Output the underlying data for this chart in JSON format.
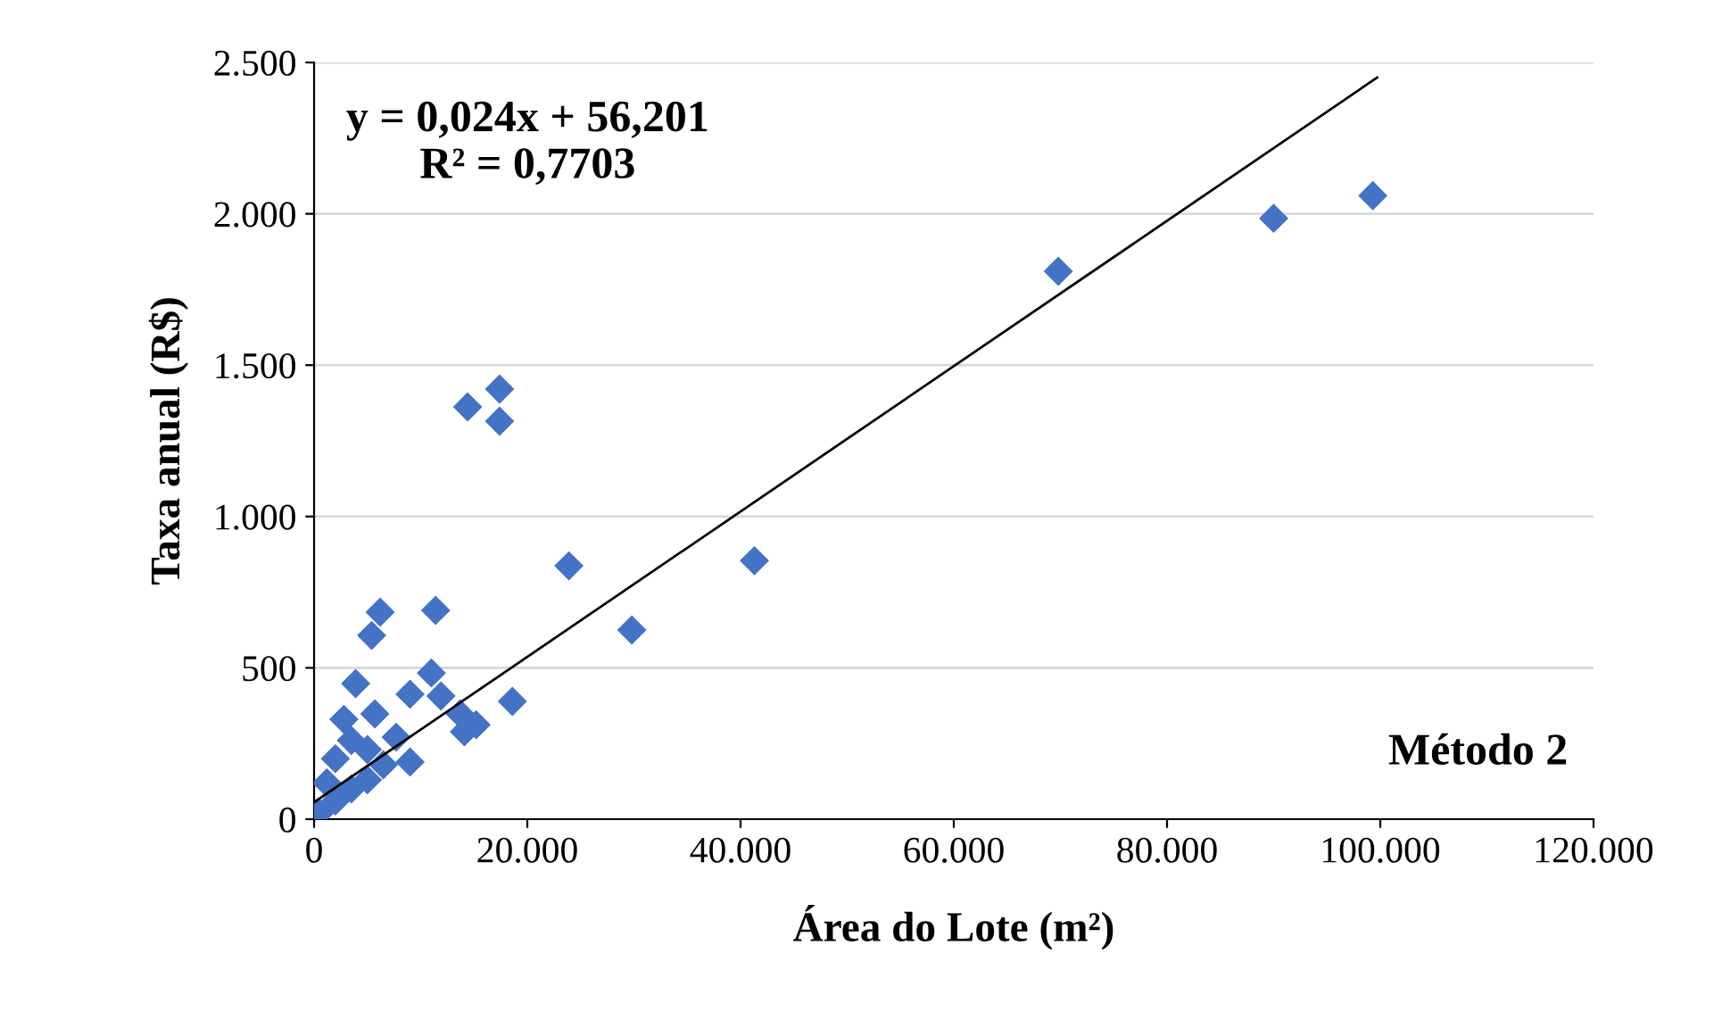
{
  "chart_data": {
    "type": "scatter",
    "xlabel": "Área do Lote (m²)",
    "ylabel": "Taxa anual (R$)",
    "annotations": [
      "y = 0,024x + 56,201\nR² = 0,7703",
      "Método 2"
    ],
    "xlim": [
      0,
      120000
    ],
    "ylim": [
      0,
      2500
    ],
    "xticks": [
      0,
      {
        "value": 20000,
        "label": "20.000"
      },
      {
        "value": 40000,
        "label": "40.000"
      },
      {
        "value": 60000,
        "label": "60.000"
      },
      {
        "value": 80000,
        "label": "80.000"
      },
      {
        "value": 100000,
        "label": "100.000"
      },
      {
        "value": 120000,
        "label": "120.000"
      }
    ],
    "yticks": [
      0,
      500,
      {
        "value": 1000,
        "label": "1.000"
      },
      {
        "value": 1500,
        "label": "1.500"
      },
      {
        "value": 2000,
        "label": "2.000"
      },
      {
        "value": 2500,
        "label": "2.500"
      }
    ],
    "grid": "y",
    "legend": false,
    "series": [
      {
        "color": "#4472c4",
        "marker": "diamond",
        "x": [
          99300,
          90000,
          69800,
          41300,
          29800,
          23900,
          18600,
          17400,
          17400,
          14400,
          11400,
          6200,
          5400,
          11000,
          9000,
          11900,
          13700,
          15200,
          14100,
          9000,
          7700,
          3900,
          5700,
          500,
          1200,
          2000,
          2000,
          2800,
          3500,
          3500,
          5000,
          5000,
          6500
        ],
        "values": [
          2060,
          1985,
          1810,
          854,
          625,
          837,
          389,
          1421,
          1315,
          1362,
          690,
          684,
          607,
          483,
          413,
          407,
          348,
          312,
          289,
          189,
          271,
          448,
          348,
          20,
          120,
          60,
          200,
          330,
          100,
          260,
          130,
          230,
          180
        ]
      },
      {
        "type": "line",
        "color": "#000000",
        "marker": "none",
        "line_style": "solid",
        "x": [
          0,
          99700
        ],
        "values": [
          56,
          2450
        ]
      }
    ]
  }
}
